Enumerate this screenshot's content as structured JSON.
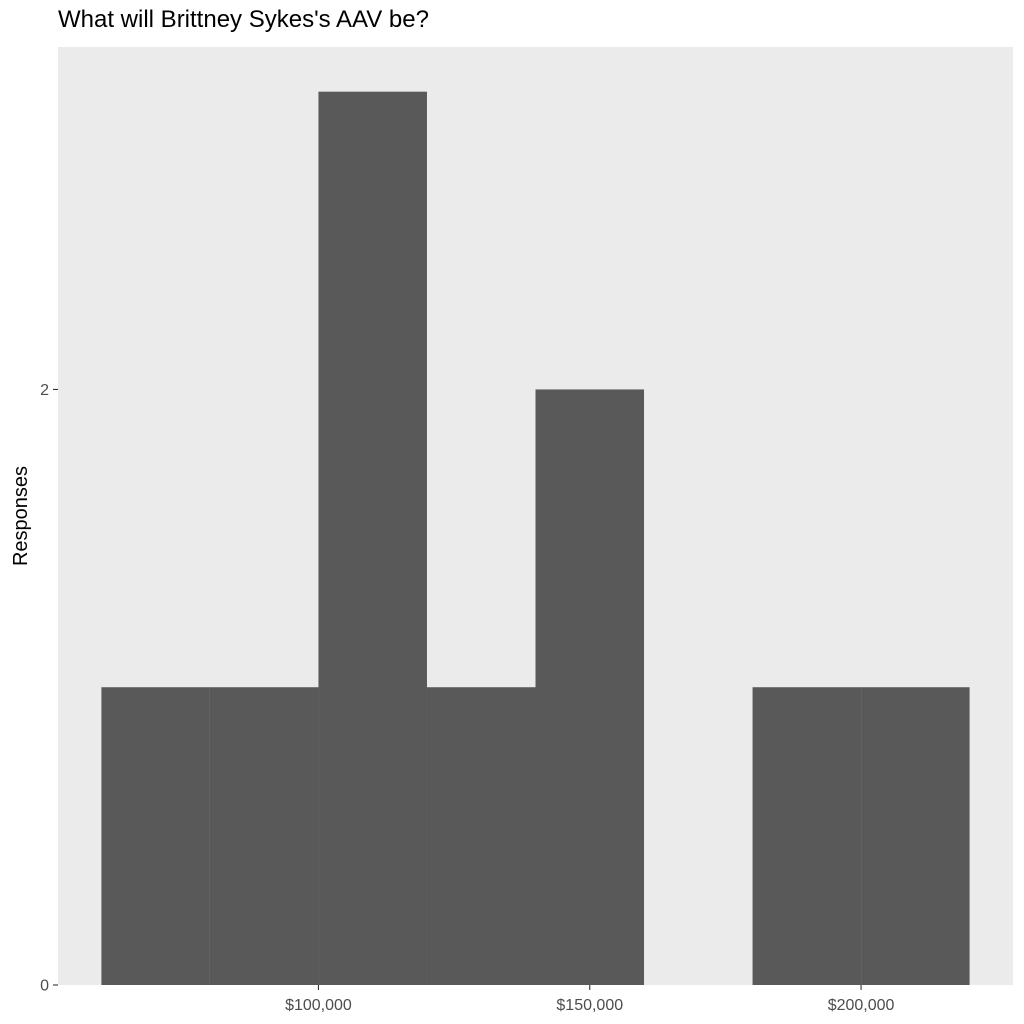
{
  "chart_data": {
    "type": "bar",
    "title": "What will Brittney Sykes's AAV be?",
    "xlabel": "",
    "ylabel": "Responses",
    "bin_width": 20000,
    "bins": [
      {
        "start": 60000,
        "end": 80000,
        "count": 1
      },
      {
        "start": 80000,
        "end": 100000,
        "count": 1
      },
      {
        "start": 100000,
        "end": 120000,
        "count": 3
      },
      {
        "start": 120000,
        "end": 140000,
        "count": 1
      },
      {
        "start": 140000,
        "end": 160000,
        "count": 2
      },
      {
        "start": 160000,
        "end": 180000,
        "count": 0
      },
      {
        "start": 180000,
        "end": 200000,
        "count": 1
      },
      {
        "start": 200000,
        "end": 220000,
        "count": 1
      }
    ],
    "xlim": [
      52000,
      228000
    ],
    "ylim": [
      0,
      3.15
    ],
    "x_ticks": [
      {
        "value": 100000,
        "label": "$100,000"
      },
      {
        "value": 150000,
        "label": "$150,000"
      },
      {
        "value": 200000,
        "label": "$200,000"
      }
    ],
    "y_ticks": [
      {
        "value": 0,
        "label": "0"
      },
      {
        "value": 2,
        "label": "2"
      }
    ],
    "grid": false,
    "colors": {
      "panel_background": "#ebebeb",
      "bar_fill": "#595959",
      "tick_mark": "#333333",
      "tick_text": "#4d4d4d"
    }
  }
}
